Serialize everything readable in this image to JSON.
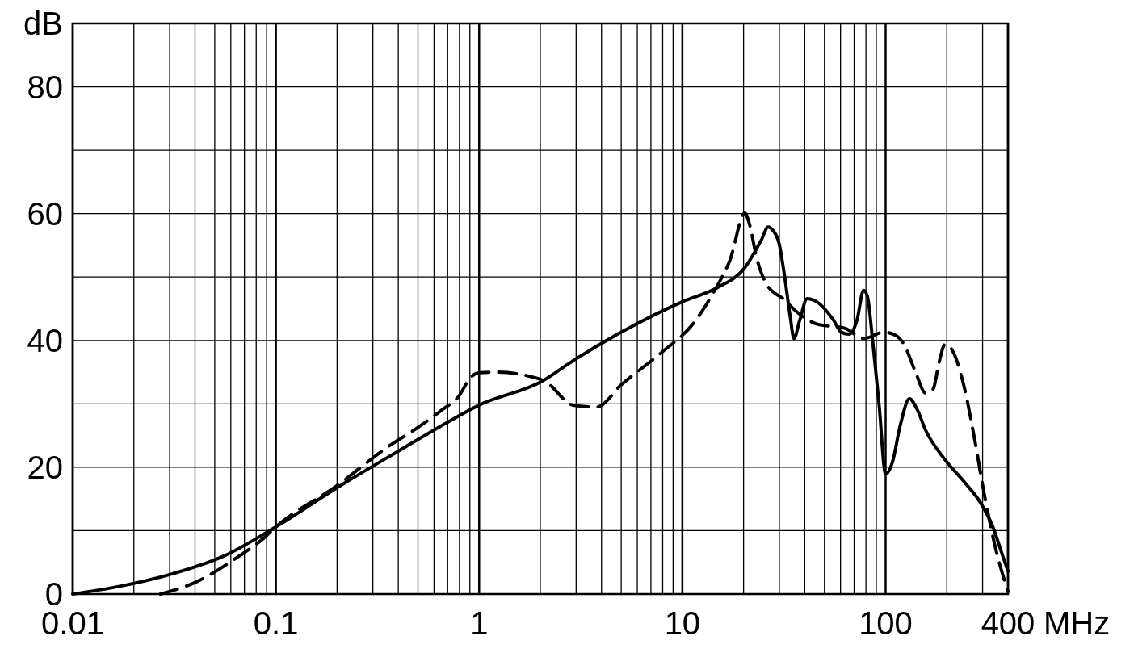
{
  "chart_data": {
    "type": "line",
    "xlabel": "MHz",
    "ylabel": "dB",
    "log": "x",
    "grid": true,
    "marker": "none",
    "xlim": [
      0.01,
      400
    ],
    "ylim": [
      0,
      90
    ],
    "xticks": [
      0.01,
      {
        "value": 0.02,
        "label": null
      },
      {
        "value": 0.03,
        "label": null
      },
      {
        "value": 0.04,
        "label": null
      },
      {
        "value": 0.05,
        "label": null
      },
      {
        "value": 0.06,
        "label": null
      },
      {
        "value": 0.07,
        "label": null
      },
      {
        "value": 0.08,
        "label": null
      },
      {
        "value": 0.09,
        "label": null
      },
      0.1,
      {
        "value": 0.2,
        "label": null
      },
      {
        "value": 0.3,
        "label": null
      },
      {
        "value": 0.4,
        "label": null
      },
      {
        "value": 0.5,
        "label": null
      },
      {
        "value": 0.6,
        "label": null
      },
      {
        "value": 0.7,
        "label": null
      },
      {
        "value": 0.8,
        "label": null
      },
      {
        "value": 0.9,
        "label": null
      },
      1,
      {
        "value": 2,
        "label": null
      },
      {
        "value": 3,
        "label": null
      },
      {
        "value": 4,
        "label": null
      },
      {
        "value": 5,
        "label": null
      },
      {
        "value": 6,
        "label": null
      },
      {
        "value": 7,
        "label": null
      },
      {
        "value": 8,
        "label": null
      },
      {
        "value": 9,
        "label": null
      },
      10,
      {
        "value": 20,
        "label": null
      },
      {
        "value": 30,
        "label": null
      },
      {
        "value": 40,
        "label": null
      },
      {
        "value": 50,
        "label": null
      },
      {
        "value": 60,
        "label": null
      },
      {
        "value": 70,
        "label": null
      },
      {
        "value": 80,
        "label": null
      },
      {
        "value": 90,
        "label": null
      },
      100,
      {
        "value": 200,
        "label": null
      },
      {
        "value": 300,
        "label": null
      },
      400
    ],
    "yticks": [
      0,
      {
        "value": 10,
        "label": null
      },
      20,
      {
        "value": 30,
        "label": null
      },
      40,
      {
        "value": 50,
        "label": null
      },
      60,
      {
        "value": 70,
        "label": null
      },
      80,
      {
        "value": 90,
        "label": null
      }
    ],
    "series": [
      {
        "color": "#000000",
        "line_style": "solid",
        "x": [
          0.01,
          0.0157,
          0.031,
          0.0555,
          0.1,
          0.215,
          0.403,
          0.69,
          1,
          2.05,
          2.9,
          5.0,
          10,
          14.8,
          20.3,
          24.6,
          26.4,
          28.0,
          29.9,
          31.8,
          33.9,
          35.4,
          37.8,
          41.1,
          45.8,
          55.4,
          60.5,
          66.3,
          72.3,
          77.9,
          81.3,
          86.3,
          92.9,
          100,
          108,
          118,
          131,
          143,
          157,
          196,
          245,
          293,
          337,
          376,
          400
        ],
        "values": [
          0,
          1.0,
          3.2,
          6.0,
          10.6,
          17.4,
          22.6,
          27.0,
          29.8,
          33.6,
          36.8,
          41.3,
          46.1,
          48.3,
          51.5,
          56,
          57.9,
          57.3,
          55.3,
          50.2,
          43.8,
          40.3,
          43.2,
          46.6,
          46.1,
          43.2,
          41.3,
          41.0,
          43.2,
          47.9,
          47.0,
          40.0,
          29.8,
          18.9,
          20.8,
          26.6,
          30.8,
          29.1,
          25.9,
          21.2,
          17.6,
          14.4,
          10.6,
          6.1,
          3.6
        ]
      },
      {
        "color": "#000000",
        "line_style": "dashed",
        "x": [
          0.027,
          0.0405,
          0.066,
          0.087,
          0.1,
          0.196,
          0.37,
          0.48,
          0.66,
          0.79,
          0.91,
          1,
          1.2,
          1.9,
          2.1,
          2.9,
          3.8,
          5.0,
          7.9,
          11.4,
          14.3,
          17.2,
          20.3,
          21.3,
          23.3,
          25.9,
          31.8,
          36.6,
          45.8,
          63.4,
          77.9,
          98,
          112,
          123,
          140,
          157,
          171,
          184,
          196,
          214,
          245,
          273,
          306,
          350,
          400
        ],
        "values": [
          0,
          1.9,
          6.0,
          8.8,
          10.6,
          16.9,
          23.6,
          25.9,
          29.1,
          31.1,
          34.2,
          34.9,
          35.0,
          34.1,
          33.6,
          29.8,
          29.5,
          33.0,
          38.1,
          42.8,
          47.7,
          52.8,
          60.1,
          58.5,
          52.8,
          48.9,
          46.4,
          44.5,
          42.6,
          41.9,
          40.3,
          41.3,
          40.8,
          39.4,
          35.1,
          31.7,
          32.3,
          36.8,
          39.4,
          38.3,
          32.3,
          24.7,
          15.7,
          6.8,
          0.4
        ]
      }
    ]
  }
}
